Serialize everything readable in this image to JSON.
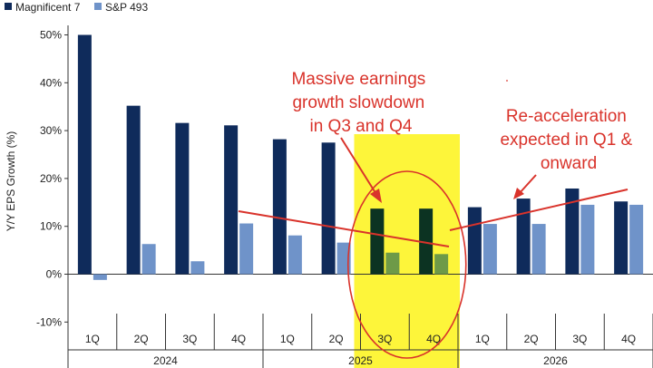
{
  "chart_data": {
    "type": "bar",
    "title": "",
    "xlabel": "",
    "ylabel": "Y/Y EPS Growth (%)",
    "categories": [
      "1Q",
      "2Q",
      "3Q",
      "4Q",
      "1Q",
      "2Q",
      "3Q",
      "4Q",
      "1Q",
      "2Q",
      "3Q",
      "4Q"
    ],
    "years": [
      {
        "label": "2024",
        "start": 0,
        "end": 3
      },
      {
        "label": "2025",
        "start": 4,
        "end": 7
      },
      {
        "label": "2026",
        "start": 8,
        "end": 11
      }
    ],
    "series": [
      {
        "name": "Magnificent 7",
        "color": "#0f2b5b",
        "values": [
          50,
          35.2,
          31.6,
          31.1,
          28.2,
          27.5,
          13.7,
          13.7,
          14.0,
          15.8,
          17.9,
          15.2
        ]
      },
      {
        "name": "S&P 493",
        "color": "#6f93c9",
        "values": [
          -1.2,
          6.3,
          2.7,
          10.6,
          8.1,
          6.6,
          4.5,
          4.2,
          10.5,
          10.5,
          14.5,
          14.5
        ]
      }
    ],
    "highlight_colors": {
      "mag7": "#0c3322",
      "sp493": "#6e9a48",
      "band": "#fdf53a",
      "annotation": "#d9332b"
    },
    "highlight_indices": [
      6,
      7
    ],
    "ylim": [
      -12.5,
      52
    ],
    "yticks": [
      -10,
      0,
      10,
      20,
      30,
      40,
      50
    ],
    "ytick_labels": [
      "-10%",
      "0%",
      "10%",
      "20%",
      "30%",
      "40%",
      "50%"
    ],
    "legend_position": "top-left",
    "grid": false,
    "annotations": [
      {
        "lines": [
          "Massive earnings",
          "growth slowdown",
          "in Q3 and Q4"
        ]
      },
      {
        "lines": [
          "Re-acceleration",
          "expected in Q1 &",
          "onward"
        ]
      }
    ]
  }
}
